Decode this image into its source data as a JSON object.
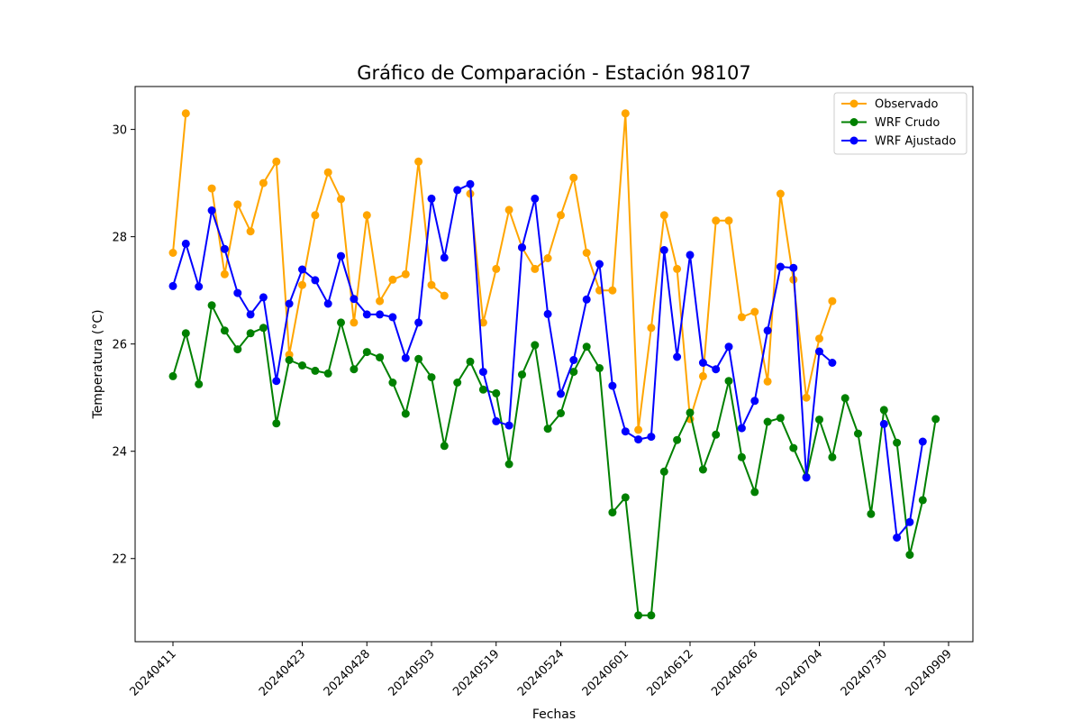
{
  "chart_data": {
    "type": "line",
    "title": "Gráfico de Comparación - Estación 98107",
    "xlabel": "Fechas",
    "ylabel": "Temperatura (°C)",
    "ylim": [
      20.45,
      30.8
    ],
    "yticks": [
      22,
      24,
      26,
      28,
      30
    ],
    "grid": false,
    "legend_position": "top-right",
    "x": [
      "20240411",
      "20240412",
      "20240413",
      "20240415",
      "20240416",
      "20240417",
      "20240418",
      "20240419",
      "20240420",
      "20240421",
      "20240423",
      "20240424",
      "20240425",
      "20240426",
      "20240427",
      "20240428",
      "20240429",
      "20240430",
      "20240501",
      "20240502",
      "20240503",
      "20240504",
      "20240505",
      "20240506",
      "20240507",
      "20240519",
      "20240520",
      "20240521",
      "20240522",
      "20240523",
      "20240524",
      "20240525",
      "20240526",
      "20240527",
      "20240528",
      "20240601",
      "20240602",
      "20240603",
      "20240604",
      "20240605",
      "20240612",
      "20240613",
      "20240614",
      "20240615",
      "20240616",
      "20240626",
      "20240627",
      "20240628",
      "20240629",
      "20240630",
      "20240704",
      "20240705",
      "20240706",
      "20240707",
      "20240708",
      "20240730",
      "20240731",
      "20240801",
      "20240802",
      "20240803",
      "20240909",
      "20240910",
      "20240911",
      "20240912"
    ],
    "xtick_labels": [
      "20240411",
      "20240423",
      "20240428",
      "20240503",
      "20240519",
      "20240524",
      "20240601",
      "20240612",
      "20240626",
      "20240704",
      "20240730",
      "20240909"
    ],
    "series": [
      {
        "name": "Observado",
        "color": "#ffa500",
        "values": [
          27.7,
          30.3,
          null,
          28.9,
          27.3,
          28.6,
          28.1,
          29.0,
          29.4,
          25.8,
          27.1,
          28.4,
          29.2,
          28.7,
          26.4,
          28.4,
          26.8,
          27.2,
          27.3,
          29.4,
          27.1,
          26.9,
          null,
          28.8,
          26.4,
          27.4,
          28.5,
          27.8,
          27.4,
          27.6,
          28.4,
          29.1,
          27.7,
          27.0,
          27.0,
          30.3,
          24.4,
          26.3,
          28.4,
          27.4,
          24.6,
          25.4,
          28.3,
          28.3,
          26.5,
          26.6,
          25.3,
          28.8,
          27.2,
          25.0,
          26.1,
          26.8,
          null,
          null,
          null,
          null,
          null,
          null,
          null,
          null,
          null,
          null,
          null,
          null
        ]
      },
      {
        "name": "WRF Crudo",
        "color": "#008000",
        "values": [
          25.4,
          26.2,
          25.25,
          26.72,
          26.25,
          25.9,
          26.2,
          26.3,
          24.52,
          25.7,
          25.6,
          25.5,
          25.45,
          26.4,
          25.53,
          25.85,
          25.75,
          25.28,
          24.7,
          25.72,
          25.38,
          24.1,
          25.28,
          25.67,
          25.15,
          25.08,
          23.76,
          25.43,
          25.98,
          24.42,
          24.71,
          25.48,
          25.95,
          25.55,
          22.86,
          23.14,
          20.94,
          20.94,
          23.62,
          24.21,
          24.72,
          23.66,
          24.31,
          25.31,
          23.89,
          23.24,
          24.55,
          24.62,
          24.06,
          23.52,
          24.59,
          23.89,
          24.99,
          24.33,
          22.83,
          24.77,
          24.16,
          22.07,
          23.09,
          24.6,
          null,
          null,
          null,
          null
        ]
      },
      {
        "name": "WRF Ajustado",
        "color": "#0000ff",
        "values": [
          27.08,
          27.87,
          27.07,
          28.49,
          27.77,
          26.95,
          26.55,
          26.87,
          25.31,
          26.75,
          27.39,
          27.19,
          26.75,
          27.64,
          26.84,
          26.55,
          26.55,
          26.5,
          25.74,
          26.4,
          28.71,
          27.61,
          28.87,
          28.98,
          25.48,
          24.56,
          24.48,
          27.8,
          28.71,
          26.56,
          25.07,
          25.7,
          26.83,
          27.49,
          25.22,
          24.37,
          24.22,
          24.27,
          27.75,
          25.76,
          27.66,
          25.65,
          25.53,
          25.95,
          24.43,
          24.94,
          26.25,
          27.44,
          27.42,
          23.51,
          25.86,
          25.65,
          null,
          null,
          null,
          24.51,
          22.39,
          22.68,
          24.18,
          null,
          null,
          null,
          null,
          null
        ]
      }
    ]
  }
}
